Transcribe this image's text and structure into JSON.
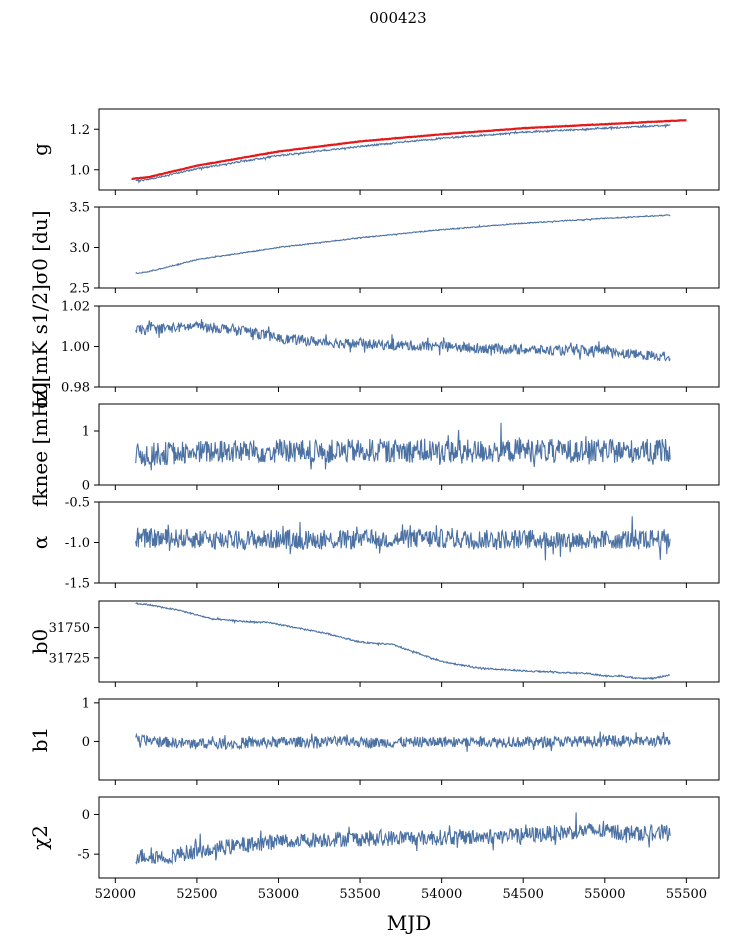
{
  "figure": {
    "suptitle": "000423",
    "xlabel": "MJD",
    "xlim": [
      51900,
      55700
    ],
    "xticks": [
      52000,
      52500,
      53000,
      53500,
      54000,
      54500,
      55000,
      55500
    ]
  },
  "chart_data": [
    {
      "type": "line",
      "ylabel": "g",
      "ylim": [
        0.9,
        1.3
      ],
      "yticks": [
        1.0,
        1.2
      ],
      "series": [
        {
          "color": "#4c72a4",
          "x": [
            52125,
            52200,
            52500,
            53000,
            53500,
            54000,
            54500,
            55000,
            55400
          ],
          "y": [
            0.945,
            0.952,
            1.005,
            1.07,
            1.115,
            1.155,
            1.185,
            1.205,
            1.22
          ]
        },
        {
          "color": "#e31a1c",
          "x": [
            52100,
            52200,
            52500,
            53000,
            53500,
            54000,
            54500,
            55000,
            55500
          ],
          "y": [
            0.955,
            0.963,
            1.02,
            1.09,
            1.14,
            1.175,
            1.205,
            1.225,
            1.245
          ]
        }
      ]
    },
    {
      "type": "line",
      "ylabel": "σ0 [du]",
      "ylim": [
        2.5,
        3.5
      ],
      "yticks": [
        2.5,
        3.0,
        3.5
      ],
      "series": [
        {
          "color": "#4c72a4",
          "x": [
            52125,
            52200,
            52500,
            53000,
            53500,
            54000,
            54500,
            55000,
            55400
          ],
          "y": [
            2.68,
            2.7,
            2.85,
            3.0,
            3.12,
            3.22,
            3.3,
            3.36,
            3.4
          ]
        }
      ]
    },
    {
      "type": "line",
      "ylabel": "σ0[mK s1/2]",
      "ylim": [
        0.98,
        1.02
      ],
      "yticks": [
        0.98,
        1.0,
        1.02
      ],
      "series": [
        {
          "color": "#4c72a4",
          "x": [
            52125,
            52300,
            52500,
            52800,
            53000,
            53300,
            53600,
            54000,
            54300,
            54700,
            55000,
            55200,
            55400
          ],
          "y": [
            1.008,
            1.009,
            1.01,
            1.008,
            1.004,
            1.002,
            1.001,
            1.0,
            0.999,
            0.998,
            0.998,
            0.996,
            0.995
          ]
        }
      ]
    },
    {
      "type": "line",
      "ylabel": "fknee [mHz]",
      "ylim": [
        0,
        1.5
      ],
      "yticks": [
        0,
        1
      ],
      "series": [
        {
          "color": "#4c72a4",
          "x": [
            52125,
            52400,
            52700,
            53000,
            53300,
            53600,
            53900,
            54200,
            54500,
            54800,
            55100,
            55400
          ],
          "y": [
            0.55,
            0.6,
            0.62,
            0.63,
            0.62,
            0.64,
            0.63,
            0.62,
            0.64,
            0.63,
            0.62,
            0.65
          ]
        }
      ]
    },
    {
      "type": "line",
      "ylabel": "α",
      "ylim": [
        -1.5,
        -0.5
      ],
      "yticks": [
        -1.5,
        -1.0,
        -0.5
      ],
      "series": [
        {
          "color": "#4c72a4",
          "x": [
            52125,
            52400,
            52700,
            53000,
            53300,
            53600,
            53900,
            54200,
            54500,
            54800,
            55100,
            55400
          ],
          "y": [
            -0.95,
            -0.95,
            -0.97,
            -0.96,
            -0.97,
            -0.96,
            -0.95,
            -0.96,
            -0.96,
            -0.97,
            -0.96,
            -0.95
          ]
        }
      ]
    },
    {
      "type": "line",
      "ylabel": "b0",
      "ylim": [
        31705,
        31772
      ],
      "yticks": [
        31725,
        31750
      ],
      "series": [
        {
          "color": "#4c72a4",
          "x": [
            52125,
            52200,
            52400,
            52600,
            52800,
            52950,
            53100,
            53300,
            53500,
            53700,
            54000,
            54200,
            54400,
            54700,
            54900,
            55000,
            55100,
            55200,
            55300,
            55400
          ],
          "y": [
            31770,
            31769,
            31764,
            31757,
            31755,
            31754,
            31750,
            31745,
            31738,
            31736,
            31722,
            31717,
            31715,
            31713,
            31712,
            31710,
            31710,
            31708,
            31708,
            31711
          ]
        }
      ]
    },
    {
      "type": "line",
      "ylabel": "b1",
      "ylim": [
        -1.0,
        1.1
      ],
      "yticks": [
        0,
        1
      ],
      "series": [
        {
          "color": "#4c72a4",
          "x": [
            52125,
            52400,
            52700,
            53000,
            53300,
            53600,
            53900,
            54200,
            54500,
            54800,
            55100,
            55400
          ],
          "y": [
            0.05,
            -0.05,
            -0.05,
            -0.02,
            0.0,
            -0.03,
            -0.01,
            0.0,
            -0.02,
            0.0,
            0.02,
            0.0
          ]
        }
      ]
    },
    {
      "type": "line",
      "ylabel": "χ2",
      "ylim": [
        -8,
        2.2
      ],
      "yticks": [
        -5,
        0
      ],
      "series": [
        {
          "color": "#4c72a4",
          "x": [
            52125,
            52300,
            52500,
            52800,
            53000,
            53300,
            53600,
            54000,
            54300,
            54600,
            54900,
            55100,
            55400
          ],
          "y": [
            -5.2,
            -5.3,
            -4.6,
            -3.8,
            -3.4,
            -3.1,
            -3.0,
            -2.9,
            -2.8,
            -2.5,
            -2.0,
            -2.3,
            -2.3
          ]
        }
      ]
    }
  ]
}
